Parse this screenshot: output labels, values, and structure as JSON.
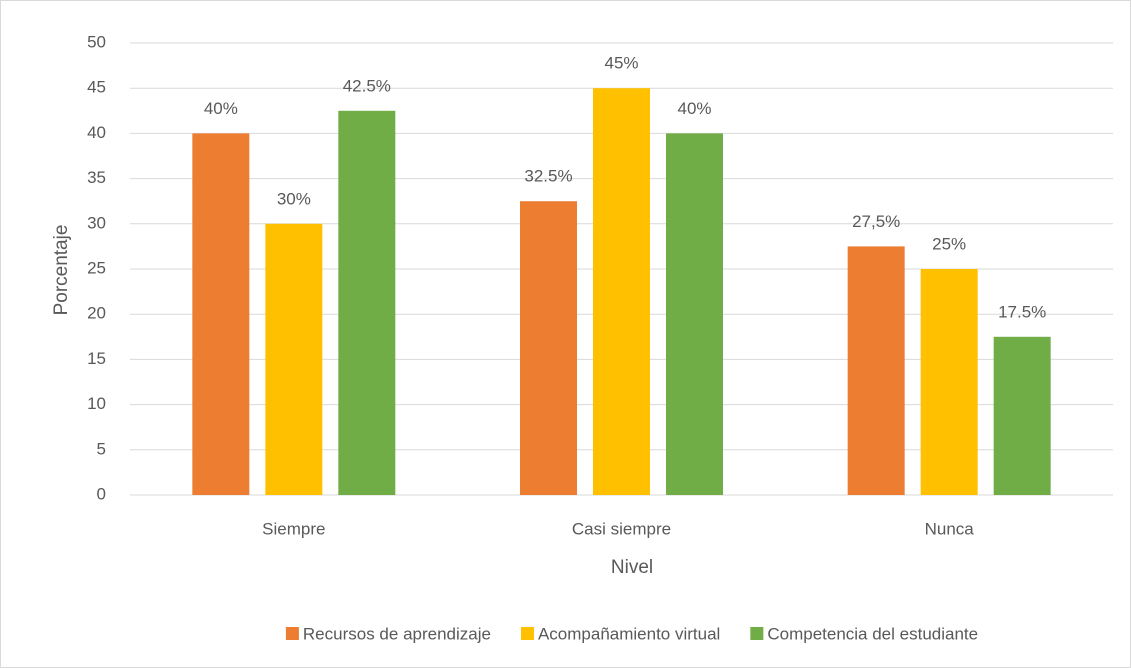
{
  "chart_data": {
    "type": "bar",
    "x_label": "Nivel",
    "y_label": "Porcentaje",
    "categories": [
      "Siempre",
      "Casi siempre",
      "Nunca"
    ],
    "series": [
      {
        "name": "Recursos de aprendizaje",
        "color": "#ED7D31",
        "values": [
          40,
          32.5,
          27.5
        ],
        "value_labels": [
          "40%",
          "32.5%",
          "27,5%"
        ]
      },
      {
        "name": "Acompañamiento virtual",
        "color": "#FFC000",
        "values": [
          30,
          45,
          25
        ],
        "value_labels": [
          "30%",
          "45%",
          "25%"
        ]
      },
      {
        "name": "Competencia del estudiante",
        "color": "#70AD47",
        "values": [
          42.5,
          40,
          17.5
        ],
        "value_labels": [
          "42.5%",
          "40%",
          "17.5%"
        ]
      }
    ],
    "ylim": [
      0,
      50
    ],
    "yticks": [
      0,
      5,
      10,
      15,
      20,
      25,
      30,
      35,
      40,
      45,
      50
    ],
    "grid": true,
    "legend": "bottom"
  }
}
